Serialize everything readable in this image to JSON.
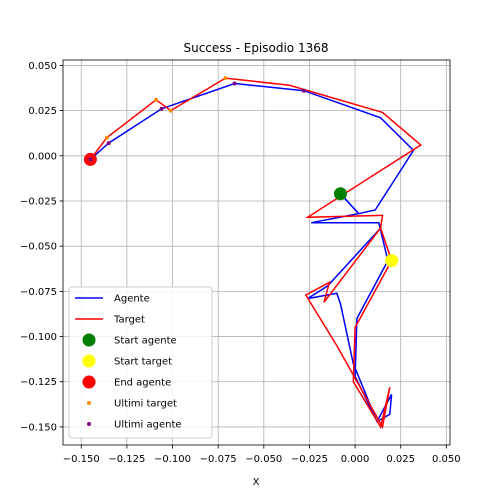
{
  "chart_data": {
    "type": "line",
    "title": "Success - Episodio 1368",
    "xlabel": "X",
    "ylabel": "",
    "xlim": [
      -0.16,
      0.052
    ],
    "ylim": [
      -0.16,
      0.053
    ],
    "xticks": [
      -0.15,
      -0.125,
      -0.1,
      -0.075,
      -0.05,
      -0.025,
      0.0,
      0.025,
      0.05
    ],
    "xtick_labels": [
      "−0.150",
      "−0.125",
      "−0.100",
      "−0.075",
      "−0.050",
      "−0.025",
      "0.000",
      "0.025",
      "0.050"
    ],
    "yticks": [
      -0.15,
      -0.125,
      -0.1,
      -0.075,
      -0.05,
      -0.025,
      0.0,
      0.025,
      0.05
    ],
    "ytick_labels": [
      "−0.150",
      "−0.125",
      "−0.100",
      "−0.075",
      "−0.050",
      "−0.025",
      "0.000",
      "0.025",
      "0.050"
    ],
    "grid": true,
    "legend_position": "lower-left",
    "series": [
      {
        "name": "Agente",
        "kind": "line",
        "color": "#0000ff",
        "points": [
          [
            -0.008,
            -0.021
          ],
          [
            0.002,
            -0.032
          ],
          [
            0.011,
            -0.03
          ],
          [
            0.032,
            0.003
          ],
          [
            0.014,
            0.021
          ],
          [
            -0.028,
            0.036
          ],
          [
            -0.066,
            0.04
          ],
          [
            -0.106,
            0.026
          ],
          [
            -0.135,
            0.007
          ],
          [
            -0.145,
            -0.002
          ]
        ]
      },
      {
        "name": "Agente",
        "kind": "line",
        "color": "#0000ff",
        "points": [
          [
            -0.008,
            -0.021
          ],
          [
            0.002,
            -0.032
          ],
          [
            -0.024,
            -0.037
          ],
          [
            0.013,
            -0.037
          ],
          [
            0.018,
            -0.058
          ],
          [
            0.001,
            -0.09
          ],
          [
            0.0,
            -0.122
          ],
          [
            0.012,
            -0.147
          ],
          [
            0.02,
            -0.132
          ],
          [
            0.019,
            -0.143
          ],
          [
            0.012,
            -0.147
          ],
          [
            -0.001,
            -0.115
          ],
          [
            -0.008,
            -0.082
          ],
          [
            -0.01,
            -0.076
          ],
          [
            -0.026,
            -0.079
          ],
          [
            -0.015,
            -0.072
          ],
          [
            0.014,
            -0.04
          ],
          [
            0.014,
            -0.038
          ]
        ]
      },
      {
        "name": "Target",
        "kind": "line",
        "color": "#ff0000",
        "points": [
          [
            0.02,
            -0.058
          ],
          [
            0.014,
            -0.04
          ],
          [
            0.015,
            -0.033
          ],
          [
            -0.026,
            -0.034
          ],
          [
            -0.026,
            -0.034
          ],
          [
            0.036,
            0.006
          ],
          [
            0.015,
            0.024
          ],
          [
            -0.036,
            0.039
          ],
          [
            -0.071,
            0.043
          ],
          [
            -0.101,
            0.025
          ],
          [
            -0.109,
            0.031
          ],
          [
            -0.136,
            0.01
          ],
          [
            -0.145,
            -0.002
          ]
        ]
      },
      {
        "name": "Target",
        "kind": "line",
        "color": "#ff0000",
        "points": [
          [
            0.02,
            -0.058
          ],
          [
            0.0,
            -0.095
          ],
          [
            -0.001,
            -0.125
          ],
          [
            0.014,
            -0.15
          ],
          [
            0.019,
            -0.128
          ],
          [
            0.015,
            -0.15
          ],
          [
            -0.01,
            -0.105
          ],
          [
            -0.027,
            -0.077
          ],
          [
            -0.014,
            -0.07
          ],
          [
            -0.017,
            -0.081
          ],
          [
            0.014,
            -0.04
          ]
        ]
      }
    ],
    "markers": [
      {
        "name": "Start agente",
        "x": -0.008,
        "y": -0.021,
        "color": "#008000",
        "size": "large"
      },
      {
        "name": "Start target",
        "x": 0.02,
        "y": -0.058,
        "color": "#ffff00",
        "size": "large"
      },
      {
        "name": "End agente",
        "x": -0.145,
        "y": -0.002,
        "color": "#ff0000",
        "size": "large"
      },
      {
        "name": "Ultimi target",
        "color": "#ff8c00",
        "size": "small",
        "points": [
          [
            -0.071,
            0.043
          ],
          [
            -0.109,
            0.031
          ],
          [
            -0.136,
            0.01
          ],
          [
            -0.101,
            0.025
          ],
          [
            -0.145,
            -0.002
          ]
        ]
      },
      {
        "name": "Ultimi agente",
        "color": "#800080",
        "size": "small",
        "points": [
          [
            -0.066,
            0.04
          ],
          [
            -0.028,
            0.036
          ],
          [
            -0.106,
            0.026
          ],
          [
            -0.135,
            0.007
          ],
          [
            -0.145,
            -0.002
          ]
        ]
      }
    ],
    "legend": [
      {
        "label": "Agente",
        "kind": "line",
        "color": "#0000ff"
      },
      {
        "label": "Target",
        "kind": "line",
        "color": "#ff0000"
      },
      {
        "label": "Start agente",
        "kind": "dot-large",
        "color": "#008000"
      },
      {
        "label": "Start target",
        "kind": "dot-large",
        "color": "#ffff00"
      },
      {
        "label": "End agente",
        "kind": "dot-large",
        "color": "#ff0000"
      },
      {
        "label": "Ultimi target",
        "kind": "dot-small",
        "color": "#ff8c00"
      },
      {
        "label": "Ultimi agente",
        "kind": "dot-small",
        "color": "#800080"
      }
    ]
  }
}
